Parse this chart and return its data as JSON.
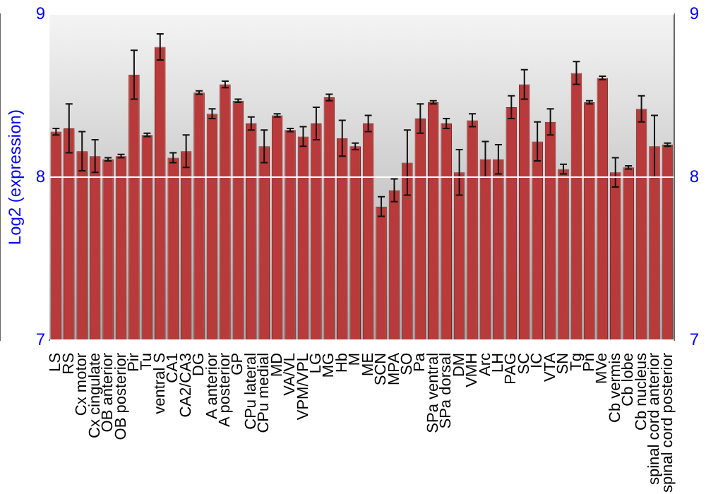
{
  "chart_data": {
    "type": "bar",
    "ylabel": "Log2 (expression)",
    "categories": [
      "LS",
      "RS",
      "Cx motor",
      "Cx cingulate",
      "OB anterior",
      "OB posterior",
      "Pir",
      "Tu",
      "ventral S",
      "CA1",
      "CA2/CA3",
      "DG",
      "A anterior",
      "A posterior",
      "GP",
      "CPu lateral",
      "CPu medial",
      "MD",
      "VA/VL",
      "VPM/VPL",
      "LG",
      "MG",
      "Hb",
      "M",
      "ME",
      "SCN",
      "MPA",
      "SO",
      "Pa",
      "SPa ventral",
      "SPa dorsal",
      "DM",
      "VMH",
      "Arc",
      "LH",
      "PAG",
      "SC",
      "IC",
      "VTA",
      "SN",
      "Tg",
      "Pn",
      "MVe",
      "Cb vermis",
      "Cb lobe",
      "Cb nucleus",
      "spinal cord anterior",
      "spinal cord posterior"
    ],
    "values": [
      8.28,
      8.3,
      8.16,
      8.13,
      8.11,
      8.13,
      8.63,
      8.26,
      8.8,
      8.12,
      8.16,
      8.52,
      8.39,
      8.57,
      8.47,
      8.33,
      8.19,
      8.38,
      8.29,
      8.25,
      8.33,
      8.49,
      8.24,
      8.19,
      8.33,
      7.82,
      7.92,
      8.09,
      8.36,
      8.46,
      8.33,
      8.03,
      8.35,
      8.11,
      8.11,
      8.43,
      8.57,
      8.22,
      8.34,
      8.05,
      8.64,
      8.46,
      8.61,
      8.03,
      8.06,
      8.42,
      8.19,
      8.2
    ],
    "errors": [
      0.02,
      0.15,
      0.12,
      0.1,
      0.01,
      0.01,
      0.15,
      0.01,
      0.08,
      0.03,
      0.1,
      0.01,
      0.03,
      0.02,
      0.01,
      0.04,
      0.1,
      0.01,
      0.01,
      0.06,
      0.1,
      0.02,
      0.11,
      0.02,
      0.05,
      0.06,
      0.07,
      0.2,
      0.09,
      0.01,
      0.03,
      0.14,
      0.04,
      0.11,
      0.09,
      0.07,
      0.09,
      0.12,
      0.08,
      0.03,
      0.07,
      0.01,
      0.01,
      0.09,
      0.01,
      0.08,
      0.19,
      0.01
    ],
    "color": "#b83a3a",
    "ylim": [
      7,
      9
    ],
    "yticks": [
      7,
      8,
      9
    ],
    "y2lim": [
      7,
      9
    ],
    "y2ticks": [
      7,
      8,
      9
    ],
    "grid": "y"
  }
}
